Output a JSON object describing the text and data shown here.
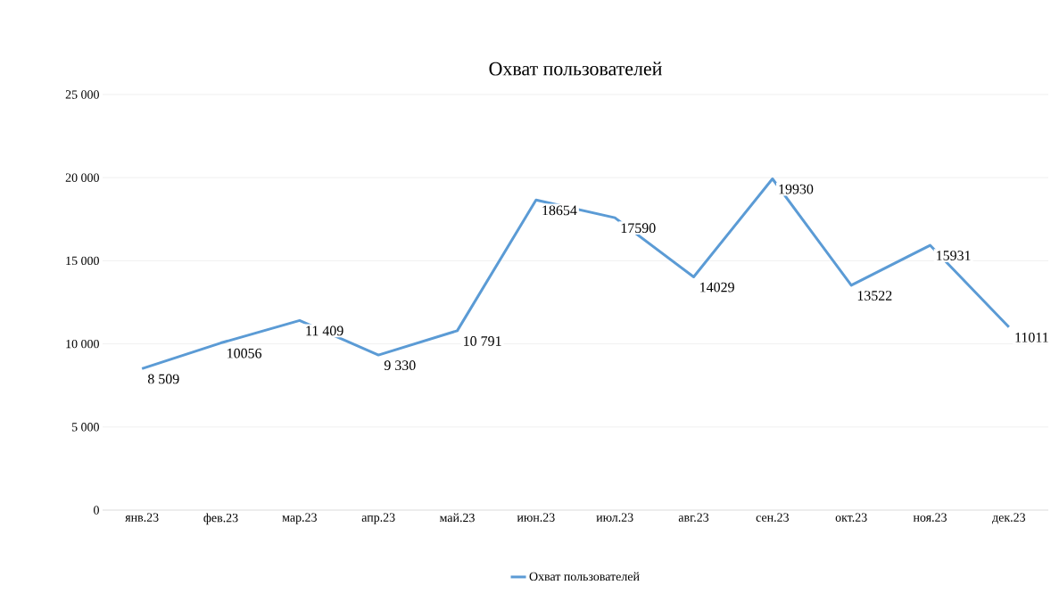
{
  "chart_data": {
    "type": "line",
    "title": "Охват пользователей",
    "categories": [
      "янв.23",
      "фев.23",
      "мар.23",
      "апр.23",
      "май.23",
      "июн.23",
      "июл.23",
      "авг.23",
      "сен.23",
      "окт.23",
      "ноя.23",
      "дек.23"
    ],
    "series": [
      {
        "name": "Охват пользователей",
        "color": "#5b9bd5",
        "values": [
          8509,
          10056,
          11409,
          9330,
          10791,
          18654,
          17590,
          14029,
          19930,
          13522,
          15931,
          11011
        ],
        "value_labels": [
          "8 509",
          "10056",
          "11 409",
          "9 330",
          "10 791",
          "18654",
          "17590",
          "14029",
          "19930",
          "13522",
          "15931",
          "11011"
        ]
      }
    ],
    "ylim": [
      0,
      25000
    ],
    "yticks": [
      0,
      {
        "value": 5000,
        "label": "5 000"
      },
      {
        "value": 10000,
        "label": "10 000"
      },
      {
        "value": 15000,
        "label": "15 000"
      },
      {
        "value": 20000,
        "label": "20 000"
      },
      {
        "value": 25000,
        "label": "25 000"
      }
    ],
    "grid": "y",
    "legend": "bottom",
    "marker": "none",
    "line_style": "solid"
  }
}
